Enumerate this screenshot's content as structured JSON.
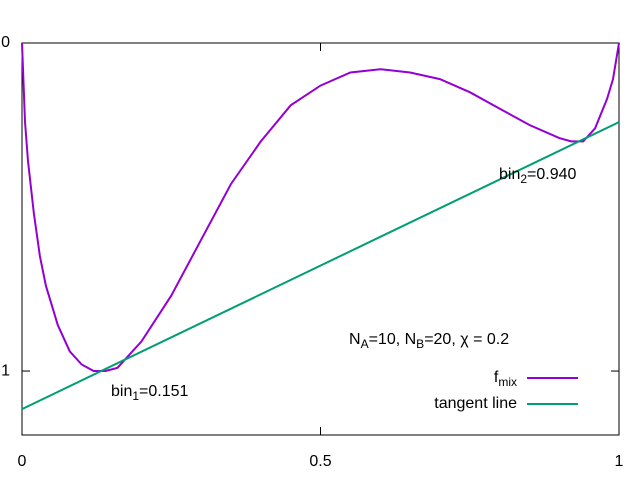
{
  "chart_data": {
    "type": "line",
    "xlim": [
      0,
      1
    ],
    "xticks": [
      0,
      0.5,
      1
    ],
    "ylim": [
      1.195,
      0
    ],
    "yticks": [
      0,
      1
    ],
    "series": [
      {
        "name": [
          {
            "text": "f"
          },
          {
            "sub": "mix"
          }
        ],
        "color": "#9400d3",
        "x": [
          0,
          0.005,
          0.01,
          0.02,
          0.03,
          0.04,
          0.06,
          0.08,
          0.1,
          0.12,
          0.14,
          0.16,
          0.18,
          0.2,
          0.25,
          0.3,
          0.35,
          0.4,
          0.45,
          0.5,
          0.55,
          0.6,
          0.65,
          0.7,
          0.75,
          0.8,
          0.85,
          0.9,
          0.92,
          0.94,
          0.96,
          0.98,
          0.99,
          1
        ],
        "values": [
          0,
          0.24,
          0.36,
          0.52,
          0.65,
          0.74,
          0.86,
          0.94,
          0.98,
          1.0,
          1.0,
          0.99,
          0.95,
          0.91,
          0.77,
          0.6,
          0.43,
          0.3,
          0.19,
          0.13,
          0.09,
          0.08,
          0.09,
          0.11,
          0.15,
          0.2,
          0.25,
          0.29,
          0.3,
          0.3,
          0.26,
          0.17,
          0.11,
          0
        ]
      },
      {
        "name": [
          {
            "text": "tangent line"
          }
        ],
        "color": "#009e73",
        "x": [
          0,
          1
        ],
        "values": [
          1.116,
          0.241
        ]
      }
    ],
    "annotations": [
      {
        "parts": [
          {
            "text": "bin"
          },
          {
            "sub": "1"
          },
          {
            "text": "=0.151"
          }
        ]
      },
      {
        "parts": [
          {
            "text": "bin"
          },
          {
            "sub": "2"
          },
          {
            "text": "=0.940"
          }
        ]
      },
      {
        "parts": [
          {
            "text": "N"
          },
          {
            "sub": "A"
          },
          {
            "text": "=10, N"
          },
          {
            "sub": "B"
          },
          {
            "text": "=20, χ = 0.2"
          }
        ]
      }
    ]
  }
}
